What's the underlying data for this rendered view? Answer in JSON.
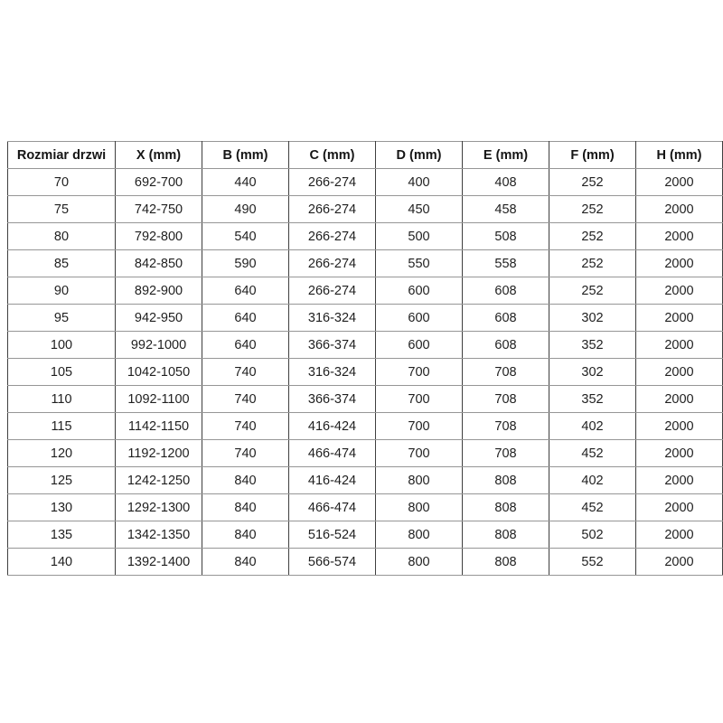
{
  "table": {
    "name": "door-size-specification-table",
    "columns": [
      "Rozmiar drzwi",
      "X (mm)",
      "B (mm)",
      "C (mm)",
      "D (mm)",
      "E (mm)",
      "F (mm)",
      "H (mm)"
    ],
    "rows": [
      [
        "70",
        "692-700",
        "440",
        "266-274",
        "400",
        "408",
        "252",
        "2000"
      ],
      [
        "75",
        "742-750",
        "490",
        "266-274",
        "450",
        "458",
        "252",
        "2000"
      ],
      [
        "80",
        "792-800",
        "540",
        "266-274",
        "500",
        "508",
        "252",
        "2000"
      ],
      [
        "85",
        "842-850",
        "590",
        "266-274",
        "550",
        "558",
        "252",
        "2000"
      ],
      [
        "90",
        "892-900",
        "640",
        "266-274",
        "600",
        "608",
        "252",
        "2000"
      ],
      [
        "95",
        "942-950",
        "640",
        "316-324",
        "600",
        "608",
        "302",
        "2000"
      ],
      [
        "100",
        "992-1000",
        "640",
        "366-374",
        "600",
        "608",
        "352",
        "2000"
      ],
      [
        "105",
        "1042-1050",
        "740",
        "316-324",
        "700",
        "708",
        "302",
        "2000"
      ],
      [
        "110",
        "1092-1100",
        "740",
        "366-374",
        "700",
        "708",
        "352",
        "2000"
      ],
      [
        "115",
        "1142-1150",
        "740",
        "416-424",
        "700",
        "708",
        "402",
        "2000"
      ],
      [
        "120",
        "1192-1200",
        "740",
        "466-474",
        "700",
        "708",
        "452",
        "2000"
      ],
      [
        "125",
        "1242-1250",
        "840",
        "416-424",
        "800",
        "808",
        "402",
        "2000"
      ],
      [
        "130",
        "1292-1300",
        "840",
        "466-474",
        "800",
        "808",
        "452",
        "2000"
      ],
      [
        "135",
        "1342-1350",
        "840",
        "516-524",
        "800",
        "808",
        "502",
        "2000"
      ],
      [
        "140",
        "1392-1400",
        "840",
        "566-574",
        "800",
        "808",
        "552",
        "2000"
      ]
    ]
  },
  "colors": {
    "background": "#ffffff",
    "text": "#1f1f1f",
    "border_horizontal": "#969696",
    "border_vertical": "#3f3f3f"
  }
}
